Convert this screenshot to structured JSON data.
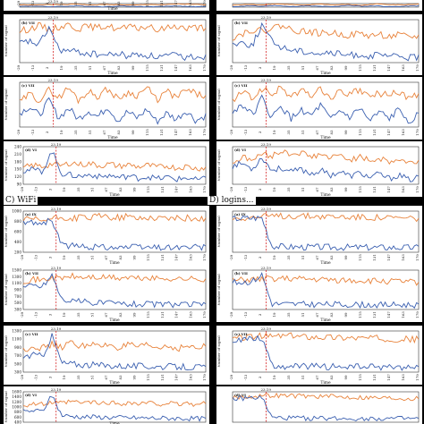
{
  "sections": [
    {
      "id": "C",
      "label": "C) WiFi"
    },
    {
      "id": "D",
      "label": "D) logins..."
    }
  ],
  "chart_data": [
    {
      "id": "c1",
      "type": "line",
      "tag": "(c) IX",
      "event_label": "23.19",
      "xlabel": "Time",
      "ylabel": "Number of signal",
      "yticks": [],
      "xticks": [
        "-29",
        "-13",
        "3",
        "19",
        "35",
        "51",
        "67",
        "83",
        "99",
        "115",
        "131",
        "147",
        "163",
        "179"
      ],
      "series": [
        {
          "values": [
            8,
            7,
            9,
            8,
            10,
            7,
            9,
            8,
            7,
            9,
            8,
            10,
            9,
            8
          ]
        },
        {
          "values": [
            4,
            5,
            3,
            4,
            5,
            4,
            3,
            5,
            4,
            3,
            4,
            5,
            3,
            4
          ]
        }
      ]
    },
    {
      "id": "d1",
      "type": "line",
      "tag": "(d) IX",
      "event_label": "",
      "xlabel": "",
      "ylabel": "",
      "yticks": [],
      "xticks": [],
      "series": [
        {
          "values": [
            6,
            8,
            7,
            9,
            8,
            6,
            9,
            7,
            8,
            6,
            9,
            8,
            7,
            9
          ]
        },
        {
          "values": [
            3,
            5,
            4,
            6,
            3,
            5,
            4,
            3,
            6,
            4,
            5,
            3,
            4,
            5
          ]
        }
      ]
    },
    {
      "id": "c2",
      "type": "line",
      "tag": "(b) VII",
      "event_label": "23.19",
      "xlabel": "Time",
      "ylabel": "Number of signal",
      "yticks": [],
      "xticks": [
        "-29",
        "-13",
        "3",
        "19",
        "35",
        "51",
        "67",
        "83",
        "99",
        "115",
        "131",
        "147",
        "163",
        "179"
      ],
      "series": [
        {
          "values": [
            55,
            58,
            62,
            57,
            60,
            63,
            58,
            61,
            59,
            62,
            57,
            60,
            58,
            61,
            56,
            59,
            62,
            58,
            60,
            57
          ]
        },
        {
          "values": [
            40,
            42,
            38,
            60,
            32,
            30,
            29,
            27,
            26,
            25,
            27,
            24,
            26,
            25,
            23,
            24,
            25,
            22,
            24,
            23
          ]
        }
      ]
    },
    {
      "id": "d2",
      "type": "line",
      "tag": "(b) VII",
      "event_label": "23.19",
      "xlabel": "Time",
      "ylabel": "Number of signal",
      "yticks": [],
      "xticks": [
        "-29",
        "-13",
        "3",
        "19",
        "35",
        "51",
        "67",
        "83",
        "99",
        "115",
        "131",
        "147",
        "163",
        "179"
      ],
      "series": [
        {
          "values": [
            50,
            55,
            60,
            58,
            62,
            65,
            60,
            58,
            57,
            55,
            56,
            54,
            53,
            55,
            52,
            54,
            51,
            53,
            50,
            52
          ]
        },
        {
          "values": [
            42,
            44,
            40,
            66,
            45,
            38,
            35,
            33,
            32,
            30,
            31,
            29,
            28,
            29,
            27,
            28,
            26,
            27,
            25,
            26
          ]
        }
      ]
    },
    {
      "id": "c3",
      "type": "line",
      "tag": "(c) VII",
      "event_label": "23.19",
      "xlabel": "Time",
      "ylabel": "Number of signal",
      "yticks": [],
      "xticks": [
        "-29",
        "-13",
        "3",
        "19",
        "35",
        "51",
        "67",
        "83",
        "99",
        "115",
        "131",
        "147",
        "163",
        "179"
      ],
      "series": [
        {
          "values": [
            48,
            55,
            50,
            58,
            52,
            60,
            50,
            57,
            53,
            59,
            51,
            56,
            54,
            60,
            50,
            57,
            52,
            58,
            55,
            53
          ]
        },
        {
          "values": [
            40,
            45,
            38,
            50,
            36,
            44,
            35,
            42,
            37,
            45,
            34,
            41,
            36,
            43,
            33,
            40,
            35,
            42,
            34,
            38
          ]
        }
      ]
    },
    {
      "id": "d3",
      "type": "line",
      "tag": "(c) VII",
      "event_label": "23.19",
      "xlabel": "Time",
      "ylabel": "Number of signal",
      "yticks": [],
      "xticks": [
        "-29",
        "-13",
        "3",
        "19",
        "35",
        "51",
        "67",
        "83",
        "99",
        "115",
        "131",
        "147",
        "163",
        "179"
      ],
      "series": [
        {
          "values": [
            50,
            57,
            52,
            59,
            55,
            60,
            53,
            58,
            54,
            59,
            52,
            57,
            55,
            58,
            53,
            56,
            54,
            57,
            52,
            55
          ]
        },
        {
          "values": [
            42,
            48,
            40,
            52,
            38,
            46,
            37,
            44,
            39,
            47,
            36,
            43,
            38,
            45,
            35,
            42,
            37,
            44,
            36,
            40
          ]
        }
      ]
    },
    {
      "id": "c4",
      "type": "line",
      "tag": "(d) VI",
      "event_label": "23.19",
      "xlabel": "Time",
      "ylabel": "Number of signal",
      "yticks": [
        "240",
        "210",
        "180",
        "150",
        "120",
        "90"
      ],
      "xticks": [
        "-29",
        "-13",
        "3",
        "19",
        "35",
        "51",
        "67",
        "83",
        "99",
        "115",
        "131",
        "147",
        "163",
        "179"
      ],
      "series": [
        {
          "values": [
            170,
            180,
            175,
            185,
            178,
            190,
            182,
            186,
            178,
            184,
            176,
            182,
            174,
            180,
            172,
            178,
            170,
            176,
            168,
            172
          ]
        },
        {
          "values": [
            160,
            165,
            158,
            230,
            150,
            145,
            140,
            148,
            138,
            144,
            136,
            142,
            134,
            140,
            132,
            138,
            130,
            136,
            128,
            132
          ]
        }
      ]
    },
    {
      "id": "d4",
      "type": "line",
      "tag": "(d) VI",
      "event_label": "23.19",
      "xlabel": "Time",
      "ylabel": "Number of signal",
      "yticks": [],
      "xticks": [
        "-29",
        "-13",
        "3",
        "19",
        "35",
        "51",
        "67",
        "83",
        "99",
        "115",
        "131",
        "147",
        "163",
        "179"
      ],
      "series": [
        {
          "values": [
            150,
            160,
            155,
            165,
            162,
            170,
            165,
            168,
            160,
            165,
            158,
            163,
            156,
            160,
            154,
            158,
            152,
            156,
            150,
            154
          ]
        },
        {
          "values": [
            145,
            150,
            140,
            160,
            138,
            142,
            135,
            140,
            132,
            138,
            130,
            136,
            128,
            134,
            126,
            132,
            124,
            130,
            122,
            126
          ]
        }
      ]
    },
    {
      "id": "c5",
      "type": "line",
      "tag": "(a) IX",
      "event_label": "23.19",
      "xlabel": "Time",
      "ylabel": "Number of signal",
      "yticks": [
        "1000",
        "800",
        "600",
        "400",
        "200"
      ],
      "xticks": [
        "-29",
        "-13",
        "3",
        "19",
        "35",
        "51",
        "67",
        "83",
        "99",
        "115",
        "131",
        "147",
        "163",
        "179"
      ],
      "series": [
        {
          "values": [
            700,
            720,
            690,
            740,
            760,
            730,
            780,
            750,
            800,
            770,
            760,
            790,
            740,
            770,
            750,
            760,
            740,
            755,
            730,
            745
          ]
        },
        {
          "values": [
            640,
            660,
            650,
            700,
            160,
            140,
            130,
            120,
            125,
            118,
            122,
            115,
            118,
            112,
            116,
            110,
            114,
            108,
            112,
            106
          ]
        }
      ]
    },
    {
      "id": "d5",
      "type": "line",
      "tag": "(a) IX",
      "event_label": "23.19",
      "xlabel": "Time",
      "ylabel": "Number of signal",
      "yticks": [],
      "xticks": [
        "-29",
        "-13",
        "3",
        "19",
        "35",
        "51",
        "67",
        "83",
        "99",
        "115",
        "131",
        "147",
        "163",
        "179"
      ],
      "series": [
        {
          "values": [
            700,
            710,
            720,
            730,
            740,
            745,
            750,
            748,
            745,
            740,
            735,
            730,
            725,
            720,
            715,
            710,
            705,
            700,
            695,
            690
          ]
        },
        {
          "values": [
            690,
            700,
            705,
            710,
            80,
            60,
            55,
            52,
            50,
            48,
            47,
            46,
            45,
            44,
            43,
            42,
            41,
            40,
            39,
            38
          ]
        }
      ]
    },
    {
      "id": "c6",
      "type": "line",
      "tag": "(b) VII",
      "event_label": "23.19",
      "xlabel": "Time",
      "ylabel": "Number of signal",
      "yticks": [
        "1500",
        "1300",
        "1100",
        "900",
        "700",
        "500",
        "300"
      ],
      "xticks": [
        "-29",
        "-13",
        "3",
        "19",
        "35",
        "51",
        "67",
        "83",
        "99",
        "115",
        "131",
        "147",
        "163",
        "179"
      ],
      "series": [
        {
          "values": [
            1100,
            1150,
            1120,
            1200,
            1180,
            1250,
            1200,
            1230,
            1190,
            1220,
            1180,
            1210,
            1170,
            1200,
            1160,
            1190,
            1150,
            1180,
            1140,
            1170
          ]
        },
        {
          "values": [
            900,
            950,
            920,
            1300,
            500,
            450,
            420,
            400,
            380,
            370,
            360,
            350,
            345,
            340,
            335,
            330,
            325,
            320,
            315,
            310
          ]
        }
      ]
    },
    {
      "id": "d6",
      "type": "line",
      "tag": "(b) VII",
      "event_label": "23.19",
      "xlabel": "Time",
      "ylabel": "Number of signal",
      "yticks": [],
      "xticks": [
        "-29",
        "-13",
        "3",
        "19",
        "35",
        "51",
        "67",
        "83",
        "99",
        "115",
        "131",
        "147",
        "163",
        "179"
      ],
      "series": [
        {
          "values": [
            1050,
            1080,
            1100,
            1120,
            1150,
            1140,
            1130,
            1120,
            1110,
            1100,
            1090,
            1080,
            1070,
            1060,
            1050,
            1040,
            1030,
            1020,
            1010,
            1000
          ]
        },
        {
          "values": [
            980,
            1000,
            1020,
            1300,
            120,
            110,
            105,
            100,
            98,
            96,
            94,
            92,
            90,
            88,
            86,
            84,
            82,
            80,
            78,
            76
          ]
        }
      ]
    },
    {
      "id": "c7",
      "type": "line",
      "tag": "(c) VII",
      "event_label": "23.19",
      "xlabel": "Time",
      "ylabel": "Number of signal",
      "yticks": [
        "1300",
        "1100",
        "900",
        "700",
        "500",
        "300"
      ],
      "xticks": [
        "-29",
        "-13",
        "3",
        "19",
        "35",
        "51",
        "67",
        "83",
        "99",
        "115",
        "131",
        "147",
        "163",
        "179"
      ],
      "series": [
        {
          "values": [
            800,
            900,
            850,
            950,
            880,
            1000,
            900,
            980,
            870,
            960,
            850,
            940,
            860,
            930,
            840,
            920,
            830,
            910,
            820,
            900
          ]
        },
        {
          "values": [
            600,
            650,
            620,
            1200,
            420,
            400,
            380,
            370,
            360,
            350,
            345,
            340,
            335,
            330,
            325,
            320,
            315,
            310,
            305,
            300
          ]
        }
      ]
    },
    {
      "id": "d7",
      "type": "line",
      "tag": "(c) VII",
      "event_label": "23.19",
      "xlabel": "Time",
      "ylabel": "Number of signal",
      "yticks": [],
      "xticks": [
        "-29",
        "-13",
        "3",
        "19",
        "35",
        "51",
        "67",
        "83",
        "99",
        "115",
        "131",
        "147",
        "163",
        "179"
      ],
      "series": [
        {
          "values": [
            850,
            880,
            900,
            920,
            910,
            930,
            920,
            915,
            905,
            900,
            890,
            885,
            880,
            870,
            865,
            860,
            850,
            845,
            840,
            835
          ]
        },
        {
          "values": [
            820,
            840,
            860,
            880,
            140,
            130,
            125,
            120,
            118,
            116,
            114,
            112,
            110,
            108,
            106,
            104,
            102,
            100,
            98,
            96
          ]
        }
      ]
    },
    {
      "id": "c8",
      "type": "line",
      "tag": "(d) VI",
      "event_label": "23.19",
      "xlabel": "Time",
      "ylabel": "Number of signal",
      "yticks": [
        "1600",
        "1400",
        "1200",
        "1000",
        "800",
        "600",
        "400"
      ],
      "xticks": [],
      "series": [
        {
          "values": [
            1000,
            1100,
            1050,
            1150,
            1100,
            1200,
            1120,
            1180,
            1090,
            1160,
            1080,
            1150,
            1070,
            1140,
            1060,
            1130,
            1050,
            1120,
            1040,
            1110
          ]
        },
        {
          "values": [
            700,
            750,
            720,
            1500,
            520,
            480,
            460,
            450,
            440,
            430,
            420,
            410,
            400,
            395,
            390,
            385,
            380,
            375,
            370,
            365
          ]
        }
      ]
    },
    {
      "id": "d8",
      "type": "line",
      "tag": "(d) VI",
      "event_label": "23.19",
      "xlabel": "",
      "ylabel": "",
      "yticks": [],
      "xticks": [],
      "series": [
        {
          "values": [
            1100,
            1150,
            1180,
            1200,
            1220,
            1210,
            1200,
            1190,
            1180,
            1170,
            1160,
            1150,
            1140,
            1130,
            1120,
            1110,
            1100,
            1090,
            1080,
            1070
          ]
        },
        {
          "values": [
            1050,
            1080,
            1100,
            1120,
            180,
            170,
            165,
            160,
            158,
            156,
            154,
            152,
            150,
            148,
            146,
            144,
            142,
            140,
            138,
            136
          ]
        }
      ]
    }
  ]
}
